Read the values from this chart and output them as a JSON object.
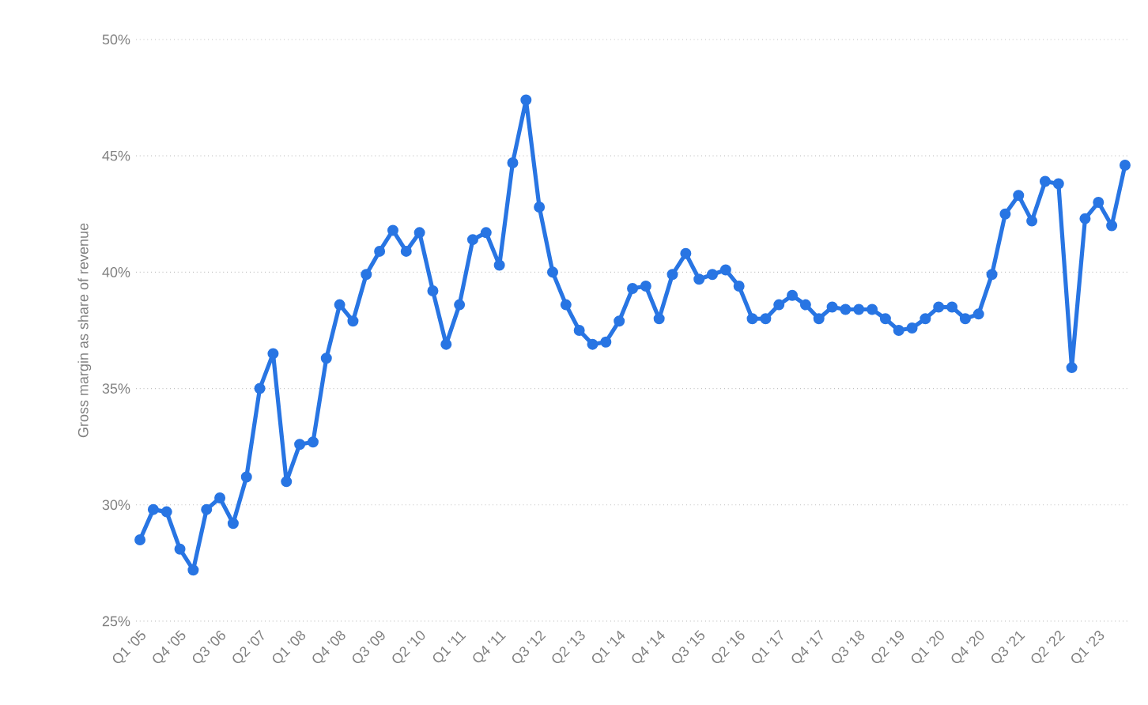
{
  "chart_data": {
    "type": "line",
    "ylabel": "Gross margin as share of revenue",
    "categories": [
      "Q1 '05",
      null,
      null,
      "Q4 '05",
      null,
      null,
      "Q3 '06",
      null,
      null,
      "Q2 '07",
      null,
      null,
      "Q1 '08",
      null,
      null,
      "Q4 '08",
      null,
      null,
      "Q3 '09",
      null,
      null,
      "Q2 '10",
      null,
      null,
      "Q1 '11",
      null,
      null,
      "Q4 '11",
      null,
      null,
      "Q3 '12",
      null,
      null,
      "Q2 '13",
      null,
      null,
      "Q1 '14",
      null,
      null,
      "Q4 '14",
      null,
      null,
      "Q3 '15",
      null,
      null,
      "Q2 '16",
      null,
      null,
      "Q1 '17",
      null,
      null,
      "Q4 '17",
      null,
      null,
      "Q3 '18",
      null,
      null,
      "Q2 '19",
      null,
      null,
      "Q1 '20",
      null,
      null,
      "Q4 '20",
      null,
      null,
      "Q3 '21",
      null,
      null,
      "Q2 '22",
      null,
      null,
      "Q1 '23",
      null,
      null
    ],
    "series": [
      {
        "color": "#2875e3",
        "values": [
          28.5,
          29.8,
          29.7,
          28.1,
          27.2,
          29.8,
          30.3,
          29.2,
          31.2,
          35.0,
          36.5,
          31.0,
          32.6,
          32.7,
          36.3,
          38.6,
          37.9,
          39.9,
          40.9,
          41.8,
          40.9,
          41.7,
          39.2,
          36.9,
          38.6,
          41.4,
          41.7,
          40.3,
          44.7,
          47.4,
          42.8,
          40.0,
          38.6,
          37.5,
          36.9,
          37.0,
          37.9,
          39.3,
          39.4,
          38.0,
          39.9,
          40.8,
          39.7,
          39.9,
          40.1,
          39.4,
          38.0,
          38.0,
          38.6,
          39.0,
          38.6,
          38.0,
          38.5,
          38.4,
          38.4,
          38.4,
          38.0,
          37.5,
          37.6,
          38.0,
          38.5,
          38.5,
          38.0,
          38.2,
          39.9,
          42.5,
          43.3,
          42.2,
          43.9,
          43.8,
          35.9,
          42.3,
          43.0,
          42.0,
          44.6
        ]
      }
    ],
    "ylim": [
      25,
      50
    ],
    "yticks": [
      {
        "value": 25,
        "label": "25%"
      },
      {
        "value": 30,
        "label": "30%"
      },
      {
        "value": 35,
        "label": "35%"
      },
      {
        "value": 40,
        "label": "40%"
      },
      {
        "value": 45,
        "label": "45%"
      },
      {
        "value": 50,
        "label": "50%"
      }
    ],
    "grid": "y",
    "marker": "circle",
    "line_style": "solid"
  }
}
